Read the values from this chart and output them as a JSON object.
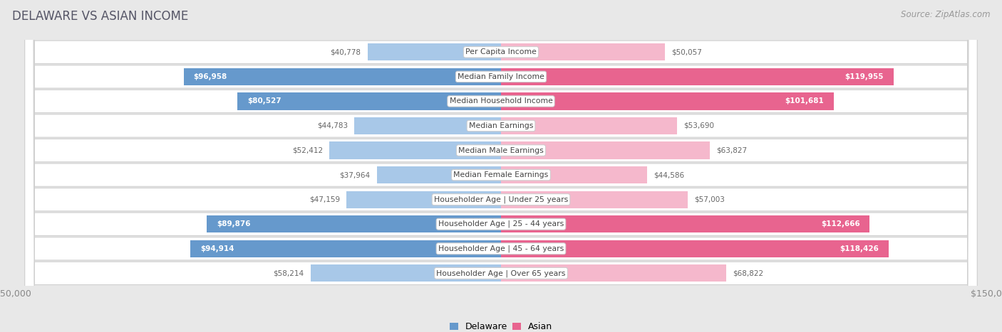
{
  "title": "DELAWARE VS ASIAN INCOME",
  "source": "Source: ZipAtlas.com",
  "categories": [
    "Per Capita Income",
    "Median Family Income",
    "Median Household Income",
    "Median Earnings",
    "Median Male Earnings",
    "Median Female Earnings",
    "Householder Age | Under 25 years",
    "Householder Age | 25 - 44 years",
    "Householder Age | 45 - 64 years",
    "Householder Age | Over 65 years"
  ],
  "delaware_values": [
    40778,
    96958,
    80527,
    44783,
    52412,
    37964,
    47159,
    89876,
    94914,
    58214
  ],
  "asian_values": [
    50057,
    119955,
    101681,
    53690,
    63827,
    44586,
    57003,
    112666,
    118426,
    68822
  ],
  "delaware_labels": [
    "$40,778",
    "$96,958",
    "$80,527",
    "$44,783",
    "$52,412",
    "$37,964",
    "$47,159",
    "$89,876",
    "$94,914",
    "$58,214"
  ],
  "asian_labels": [
    "$50,057",
    "$119,955",
    "$101,681",
    "$53,690",
    "$63,827",
    "$44,586",
    "$57,003",
    "$112,666",
    "$118,426",
    "$68,822"
  ],
  "max_value": 150000,
  "delaware_color_light": "#a8c8e8",
  "delaware_color_dark": "#6699cc",
  "asian_color_light": "#f5b8cc",
  "asian_color_dark": "#e8648f",
  "bg_color": "#ffffff",
  "outer_bg": "#e8e8e8",
  "row_border_color": "#d0d0d0",
  "inside_label_threshold_del": 60000,
  "inside_label_threshold_asi": 70000,
  "title_color": "#555566",
  "source_color": "#999999",
  "tick_color": "#888888",
  "value_label_color_outside": "#666666",
  "value_label_color_inside": "#ffffff"
}
